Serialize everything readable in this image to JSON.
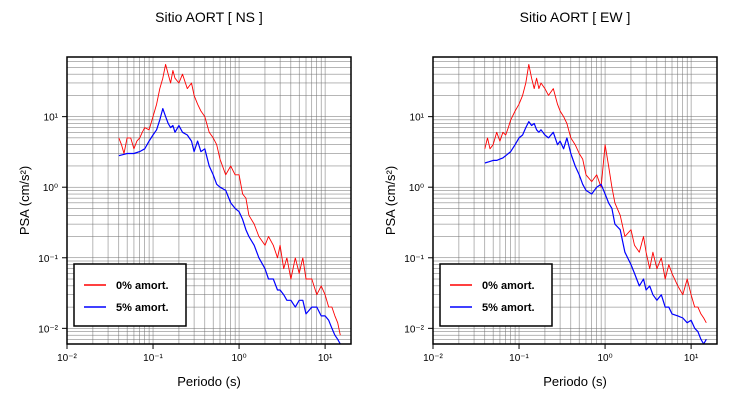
{
  "chart_data": [
    {
      "type": "line",
      "title": "Sitio AORT [ NS ]",
      "xlabel": "Periodo (s)",
      "ylabel": "PSA (cm/s²)",
      "xscale": "log",
      "yscale": "log",
      "xlim": [
        0.01,
        20
      ],
      "ylim": [
        0.006,
        70
      ],
      "grid": true,
      "legend_position": "bottom-left",
      "x_ticks": [
        "10⁻²",
        "10⁻¹",
        "10⁰",
        "10¹"
      ],
      "y_ticks": [
        "10⁻²",
        "10⁻¹",
        "10⁰",
        "10¹"
      ],
      "series": [
        {
          "name": "0% amort.",
          "color": "#ff0000",
          "x": [
            0.04,
            0.043,
            0.046,
            0.05,
            0.055,
            0.06,
            0.065,
            0.07,
            0.075,
            0.08,
            0.09,
            0.1,
            0.11,
            0.12,
            0.13,
            0.14,
            0.15,
            0.16,
            0.17,
            0.18,
            0.2,
            0.22,
            0.25,
            0.28,
            0.3,
            0.33,
            0.36,
            0.4,
            0.45,
            0.5,
            0.55,
            0.6,
            0.7,
            0.8,
            0.9,
            1.0,
            1.1,
            1.2,
            1.3,
            1.5,
            1.7,
            2.0,
            2.2,
            2.5,
            2.8,
            3.0,
            3.3,
            3.6,
            4.0,
            4.5,
            5.0,
            5.5,
            6.0,
            7.0,
            8.0,
            9.0,
            10.0,
            11.0,
            12.0,
            13.0,
            14.0,
            15.0
          ],
          "y": [
            5.0,
            4.0,
            3.0,
            5.0,
            5.0,
            3.5,
            4.5,
            5.0,
            6.0,
            7.0,
            6.5,
            10.0,
            15.0,
            25.0,
            35.0,
            55.0,
            40.0,
            30.0,
            45.0,
            35.0,
            30.0,
            40.0,
            25.0,
            30.0,
            20.0,
            15.0,
            12.0,
            10.0,
            6.0,
            5.0,
            4.0,
            2.5,
            1.5,
            2.0,
            1.5,
            1.5,
            0.8,
            0.7,
            0.4,
            0.3,
            0.2,
            0.15,
            0.2,
            0.15,
            0.1,
            0.15,
            0.07,
            0.1,
            0.05,
            0.1,
            0.06,
            0.1,
            0.05,
            0.05,
            0.03,
            0.04,
            0.03,
            0.02,
            0.02,
            0.015,
            0.012,
            0.008
          ]
        },
        {
          "name": "5% amort.",
          "color": "#0000ff",
          "x": [
            0.04,
            0.045,
            0.05,
            0.055,
            0.06,
            0.065,
            0.07,
            0.08,
            0.09,
            0.1,
            0.11,
            0.12,
            0.13,
            0.14,
            0.15,
            0.16,
            0.17,
            0.18,
            0.2,
            0.22,
            0.25,
            0.28,
            0.3,
            0.33,
            0.36,
            0.4,
            0.45,
            0.5,
            0.55,
            0.6,
            0.7,
            0.8,
            0.9,
            1.0,
            1.1,
            1.2,
            1.3,
            1.5,
            1.7,
            2.0,
            2.2,
            2.5,
            2.8,
            3.0,
            3.3,
            3.6,
            4.0,
            4.5,
            5.0,
            5.5,
            6.0,
            7.0,
            8.0,
            9.0,
            10.0,
            11.0,
            12.0,
            13.0,
            14.0,
            15.0
          ],
          "y": [
            2.8,
            2.9,
            3.0,
            3.0,
            3.0,
            3.1,
            3.2,
            3.5,
            4.5,
            5.5,
            6.5,
            9.0,
            13.0,
            10.0,
            8.0,
            7.0,
            7.5,
            6.0,
            7.5,
            6.0,
            5.5,
            4.5,
            3.2,
            4.5,
            3.2,
            3.5,
            2.0,
            1.5,
            1.1,
            1.0,
            0.9,
            0.6,
            0.5,
            0.45,
            0.35,
            0.25,
            0.2,
            0.15,
            0.1,
            0.07,
            0.05,
            0.05,
            0.035,
            0.035,
            0.03,
            0.025,
            0.025,
            0.02,
            0.025,
            0.025,
            0.016,
            0.02,
            0.02,
            0.015,
            0.015,
            0.013,
            0.01,
            0.008,
            0.007,
            0.006
          ]
        }
      ]
    },
    {
      "type": "line",
      "title": "Sitio AORT [ EW ]",
      "xlabel": "Periodo (s)",
      "ylabel": "PSA (cm/s²)",
      "xscale": "log",
      "yscale": "log",
      "xlim": [
        0.01,
        20
      ],
      "ylim": [
        0.006,
        70
      ],
      "grid": true,
      "legend_position": "bottom-left",
      "x_ticks": [
        "10⁻²",
        "10⁻¹",
        "10⁰",
        "10¹"
      ],
      "y_ticks": [
        "10⁻²",
        "10⁻¹",
        "10⁰",
        "10¹"
      ],
      "series": [
        {
          "name": "0% amort.",
          "color": "#ff0000",
          "x": [
            0.04,
            0.043,
            0.046,
            0.05,
            0.055,
            0.06,
            0.065,
            0.07,
            0.075,
            0.08,
            0.09,
            0.1,
            0.11,
            0.12,
            0.13,
            0.14,
            0.15,
            0.16,
            0.17,
            0.18,
            0.2,
            0.22,
            0.25,
            0.28,
            0.3,
            0.33,
            0.36,
            0.4,
            0.45,
            0.5,
            0.55,
            0.6,
            0.7,
            0.8,
            0.9,
            1.0,
            1.1,
            1.2,
            1.3,
            1.5,
            1.7,
            2.0,
            2.2,
            2.5,
            2.8,
            3.0,
            3.3,
            3.6,
            4.0,
            4.5,
            5.0,
            5.5,
            6.0,
            7.0,
            8.0,
            9.0,
            10.0,
            11.0,
            12.0,
            13.0,
            14.0,
            15.0
          ],
          "y": [
            3.5,
            5.0,
            3.5,
            4.0,
            6.0,
            4.5,
            6.0,
            5.5,
            7.0,
            9.0,
            12.0,
            15.0,
            20.0,
            30.0,
            55.0,
            35.0,
            25.0,
            35.0,
            25.0,
            30.0,
            25.0,
            20.0,
            25.0,
            15.0,
            12.0,
            10.0,
            8.0,
            5.0,
            4.0,
            3.0,
            2.5,
            1.5,
            1.2,
            1.5,
            1.0,
            4.0,
            2.0,
            1.0,
            0.6,
            0.4,
            0.2,
            0.25,
            0.15,
            0.12,
            0.2,
            0.12,
            0.07,
            0.12,
            0.07,
            0.1,
            0.05,
            0.08,
            0.06,
            0.04,
            0.03,
            0.05,
            0.03,
            0.02,
            0.02,
            0.016,
            0.014,
            0.012
          ]
        },
        {
          "name": "5% amort.",
          "color": "#0000ff",
          "x": [
            0.04,
            0.045,
            0.05,
            0.055,
            0.06,
            0.065,
            0.07,
            0.08,
            0.09,
            0.1,
            0.11,
            0.12,
            0.13,
            0.14,
            0.15,
            0.16,
            0.17,
            0.18,
            0.2,
            0.22,
            0.25,
            0.28,
            0.3,
            0.33,
            0.36,
            0.4,
            0.45,
            0.5,
            0.55,
            0.6,
            0.7,
            0.8,
            0.9,
            1.0,
            1.1,
            1.2,
            1.3,
            1.5,
            1.7,
            2.0,
            2.2,
            2.5,
            2.8,
            3.0,
            3.3,
            3.6,
            4.0,
            4.5,
            5.0,
            5.5,
            6.0,
            7.0,
            8.0,
            9.0,
            10.0,
            11.0,
            12.0,
            13.0,
            14.0,
            15.0
          ],
          "y": [
            2.2,
            2.3,
            2.4,
            2.4,
            2.5,
            2.6,
            2.8,
            3.2,
            4.0,
            5.0,
            5.5,
            7.0,
            8.5,
            7.5,
            8.0,
            6.5,
            6.0,
            6.5,
            5.5,
            5.0,
            6.0,
            4.0,
            4.5,
            3.5,
            5.0,
            3.0,
            2.0,
            1.5,
            1.1,
            0.9,
            0.8,
            1.0,
            1.1,
            0.8,
            0.6,
            0.5,
            0.3,
            0.25,
            0.12,
            0.08,
            0.06,
            0.04,
            0.05,
            0.035,
            0.04,
            0.03,
            0.025,
            0.03,
            0.02,
            0.02,
            0.016,
            0.015,
            0.014,
            0.012,
            0.013,
            0.01,
            0.009,
            0.007,
            0.006,
            0.007
          ]
        }
      ]
    }
  ]
}
